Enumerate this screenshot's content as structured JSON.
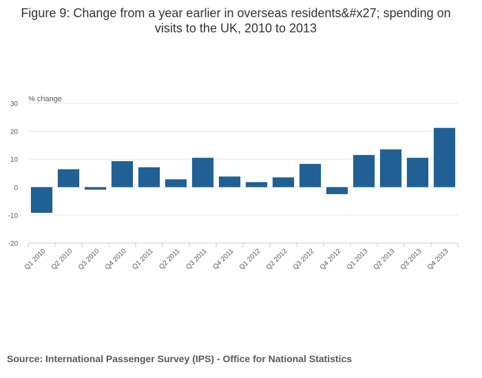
{
  "title": "Figure 9: Change from a year earlier in overseas residents&#x27; spending on visits to the UK, 2010 to 2013",
  "source": "Source: International Passenger Survey (IPS) - Office for National Statistics",
  "colors": {
    "bar": "#206095",
    "grid": "#e6e6e6",
    "axis": "#cccccc"
  },
  "chart_data": {
    "type": "bar",
    "categories": [
      "Q1 2010",
      "Q2 2010",
      "Q3 2010",
      "Q4 2010",
      "Q1 2011",
      "Q2 2011",
      "Q3 2011",
      "Q4 2011",
      "Q1 2012",
      "Q2 2012",
      "Q3 2012",
      "Q4 2012",
      "Q1 2013",
      "Q2 2013",
      "Q3 2013",
      "Q4 2013"
    ],
    "values": [
      -9.2,
      6.4,
      -0.9,
      9.3,
      7.1,
      2.8,
      10.5,
      3.8,
      1.8,
      3.5,
      8.3,
      -2.5,
      11.5,
      13.5,
      10.5,
      21.2
    ],
    "ylabel": "% change",
    "xlabel": "",
    "ylim": [
      -20,
      30
    ],
    "yticks": [
      -20,
      -10,
      0,
      10,
      20,
      30
    ],
    "grid": true,
    "legend": "none"
  }
}
